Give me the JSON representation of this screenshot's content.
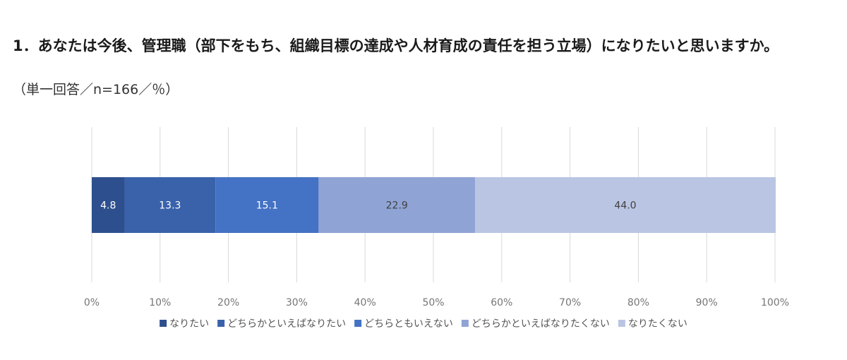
{
  "title": "1．あなたは今後、管理職（部下をもち、組織目標の達成や人材育成の責任を担う立場）になりたいと思いますか。",
  "subtitle": "（単一回答／n=166／％）",
  "chart_data": {
    "type": "bar",
    "orientation": "horizontal",
    "stacked": true,
    "categories": [
      ""
    ],
    "series": [
      {
        "name": "なりたい",
        "values": [
          4.8
        ],
        "color": "#2e4f8e",
        "label_color": "#ffffff"
      },
      {
        "name": "どちらかといえばなりたい",
        "values": [
          13.3
        ],
        "color": "#3a62ab",
        "label_color": "#ffffff"
      },
      {
        "name": "どちらともいえない",
        "values": [
          15.1
        ],
        "color": "#4472c4",
        "label_color": "#ffffff"
      },
      {
        "name": "どちらかといえばなりたくない",
        "values": [
          22.9
        ],
        "color": "#8fa3d5",
        "label_color": "#404040"
      },
      {
        "name": "なりたくない",
        "values": [
          44.0
        ],
        "color": "#bac5e3",
        "label_color": "#404040"
      }
    ],
    "xlim": [
      0,
      100
    ],
    "xticks": [
      "0%",
      "10%",
      "20%",
      "30%",
      "40%",
      "50%",
      "60%",
      "70%",
      "80%",
      "90%",
      "100%"
    ],
    "grid": true,
    "legend_position": "bottom"
  }
}
